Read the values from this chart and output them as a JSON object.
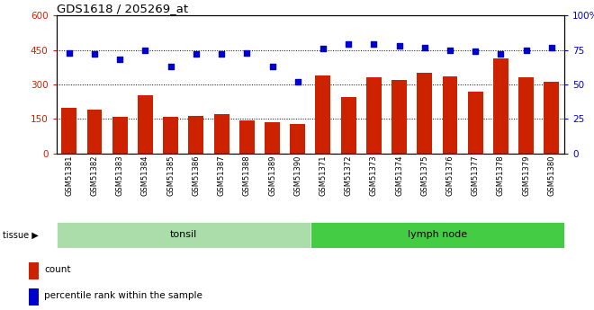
{
  "title": "GDS1618 / 205269_at",
  "samples": [
    "GSM51381",
    "GSM51382",
    "GSM51383",
    "GSM51384",
    "GSM51385",
    "GSM51386",
    "GSM51387",
    "GSM51388",
    "GSM51389",
    "GSM51390",
    "GSM51371",
    "GSM51372",
    "GSM51373",
    "GSM51374",
    "GSM51375",
    "GSM51376",
    "GSM51377",
    "GSM51378",
    "GSM51379",
    "GSM51380"
  ],
  "counts": [
    200,
    190,
    160,
    255,
    160,
    165,
    170,
    145,
    135,
    130,
    340,
    245,
    330,
    320,
    350,
    335,
    270,
    415,
    330,
    310
  ],
  "percentile": [
    73,
    72,
    68,
    75,
    63,
    72,
    72,
    73,
    63,
    52,
    76,
    79,
    79,
    78,
    77,
    75,
    74,
    72,
    75,
    77
  ],
  "tonsil_count": 10,
  "lymph_count": 10,
  "tonsil_label": "tonsil",
  "lymph_label": "lymph node",
  "bar_color": "#cc2200",
  "dot_color": "#0000cc",
  "ylim_left": [
    0,
    600
  ],
  "ylim_right": [
    0,
    100
  ],
  "yticks_left": [
    0,
    150,
    300,
    450,
    600
  ],
  "yticks_right": [
    0,
    25,
    50,
    75,
    100
  ],
  "grid_ticks": [
    150,
    300,
    450
  ],
  "bg_color": "#ffffff",
  "plot_bg": "#ffffff",
  "tonsil_bg": "#aaddaa",
  "lymph_bg": "#44cc44",
  "tissue_label": "tissue",
  "legend_count": "count",
  "legend_percentile": "percentile rank within the sample",
  "fig_width": 6.6,
  "fig_height": 3.45
}
